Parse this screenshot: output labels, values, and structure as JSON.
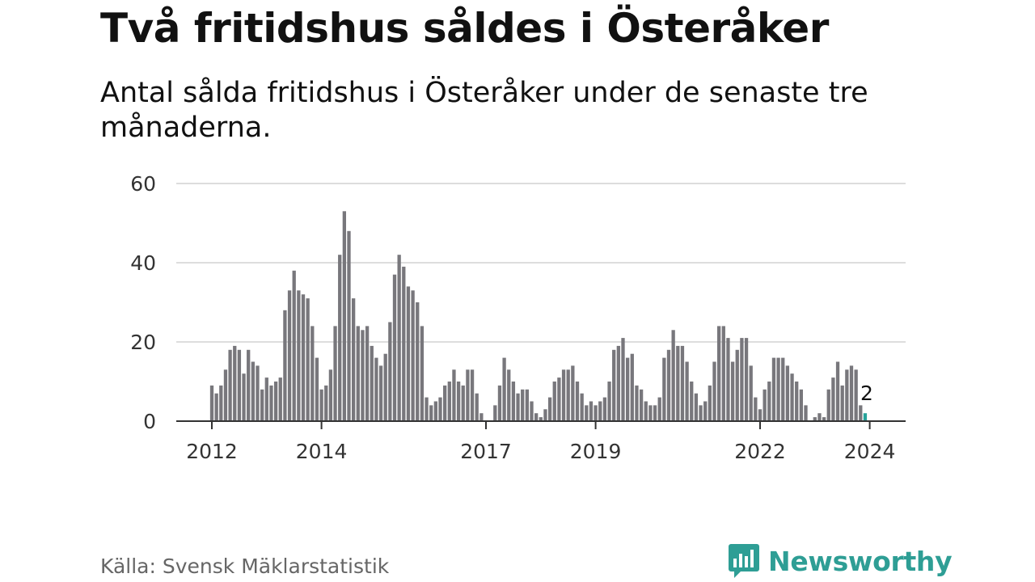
{
  "title": "Två fritidshus såldes i Österåker",
  "subtitle": "Antal sålda fritidshus i Österåker under de senaste tre månaderna.",
  "source": "Källa: Svensk Mäklarstatistik",
  "brand": "Newsworthy",
  "colors": {
    "bar": "#78777c",
    "highlight": "#27a39a",
    "grid": "#dddddd",
    "axis": "#333333",
    "brand": "#2e9e95"
  },
  "chart_data": {
    "type": "bar",
    "title": "Två fritidshus såldes i Österåker",
    "xlabel": "",
    "ylabel": "",
    "ylim": [
      0,
      60
    ],
    "y_ticks": [
      0,
      20,
      40,
      60
    ],
    "x_ticks": [
      {
        "label": "2012",
        "index": 0
      },
      {
        "label": "2014",
        "index": 24
      },
      {
        "label": "2017",
        "index": 60
      },
      {
        "label": "2019",
        "index": 84
      },
      {
        "label": "2022",
        "index": 120
      },
      {
        "label": "2024",
        "index": 144
      }
    ],
    "values": [
      9,
      7,
      9,
      13,
      18,
      19,
      18,
      12,
      18,
      15,
      14,
      8,
      11,
      9,
      10,
      11,
      28,
      33,
      38,
      33,
      32,
      31,
      24,
      16,
      8,
      9,
      13,
      24,
      42,
      53,
      48,
      31,
      24,
      23,
      24,
      19,
      16,
      14,
      17,
      25,
      37,
      42,
      39,
      34,
      33,
      30,
      24,
      6,
      4,
      5,
      6,
      9,
      10,
      13,
      10,
      9,
      13,
      13,
      7,
      2,
      0,
      0,
      4,
      9,
      16,
      13,
      10,
      7,
      8,
      8,
      5,
      2,
      1,
      3,
      6,
      10,
      11,
      13,
      13,
      14,
      10,
      7,
      4,
      5,
      4,
      5,
      6,
      10,
      18,
      19,
      21,
      16,
      17,
      9,
      8,
      5,
      4,
      4,
      6,
      16,
      18,
      23,
      19,
      19,
      15,
      10,
      7,
      4,
      5,
      9,
      15,
      24,
      24,
      21,
      15,
      18,
      21,
      21,
      14,
      6,
      3,
      8,
      10,
      16,
      16,
      16,
      14,
      12,
      10,
      8,
      4,
      0,
      1,
      2,
      1,
      8,
      11,
      15,
      9,
      13,
      14,
      13,
      4,
      2
    ],
    "highlight_last": true,
    "annotation": {
      "index": 143,
      "label": "2"
    }
  }
}
